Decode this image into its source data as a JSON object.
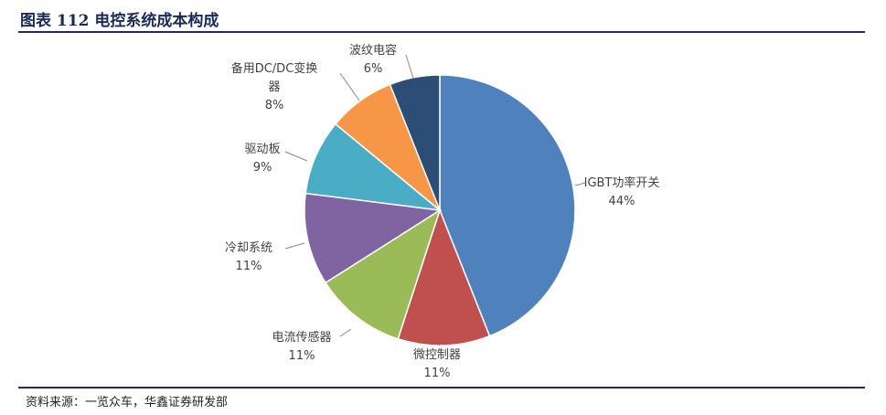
{
  "title": "图表 112 电控系统成本构成",
  "source": "资料来源：一览众车，华鑫证券研发部",
  "chart_data": {
    "type": "pie",
    "title": "",
    "start": "top",
    "direction": "clockwise",
    "slices": [
      {
        "label": "IGBT功率开关",
        "value": 44,
        "pct": "44%",
        "color": "#4F81BD"
      },
      {
        "label": "微控制器",
        "value": 11,
        "pct": "11%",
        "color": "#C0504D"
      },
      {
        "label": "电流传感器",
        "value": 11,
        "pct": "11%",
        "color": "#9BBB59"
      },
      {
        "label": "冷却系统",
        "value": 11,
        "pct": "11%",
        "color": "#8064A2"
      },
      {
        "label": "驱动板",
        "value": 9,
        "pct": "9%",
        "color": "#4BACC6"
      },
      {
        "label": "备用DC/DC变换器",
        "value": 8,
        "pct": "8%",
        "color": "#F79646"
      },
      {
        "label": "波纹电容",
        "value": 6,
        "pct": "6%",
        "color": "#2C4D75"
      }
    ]
  }
}
